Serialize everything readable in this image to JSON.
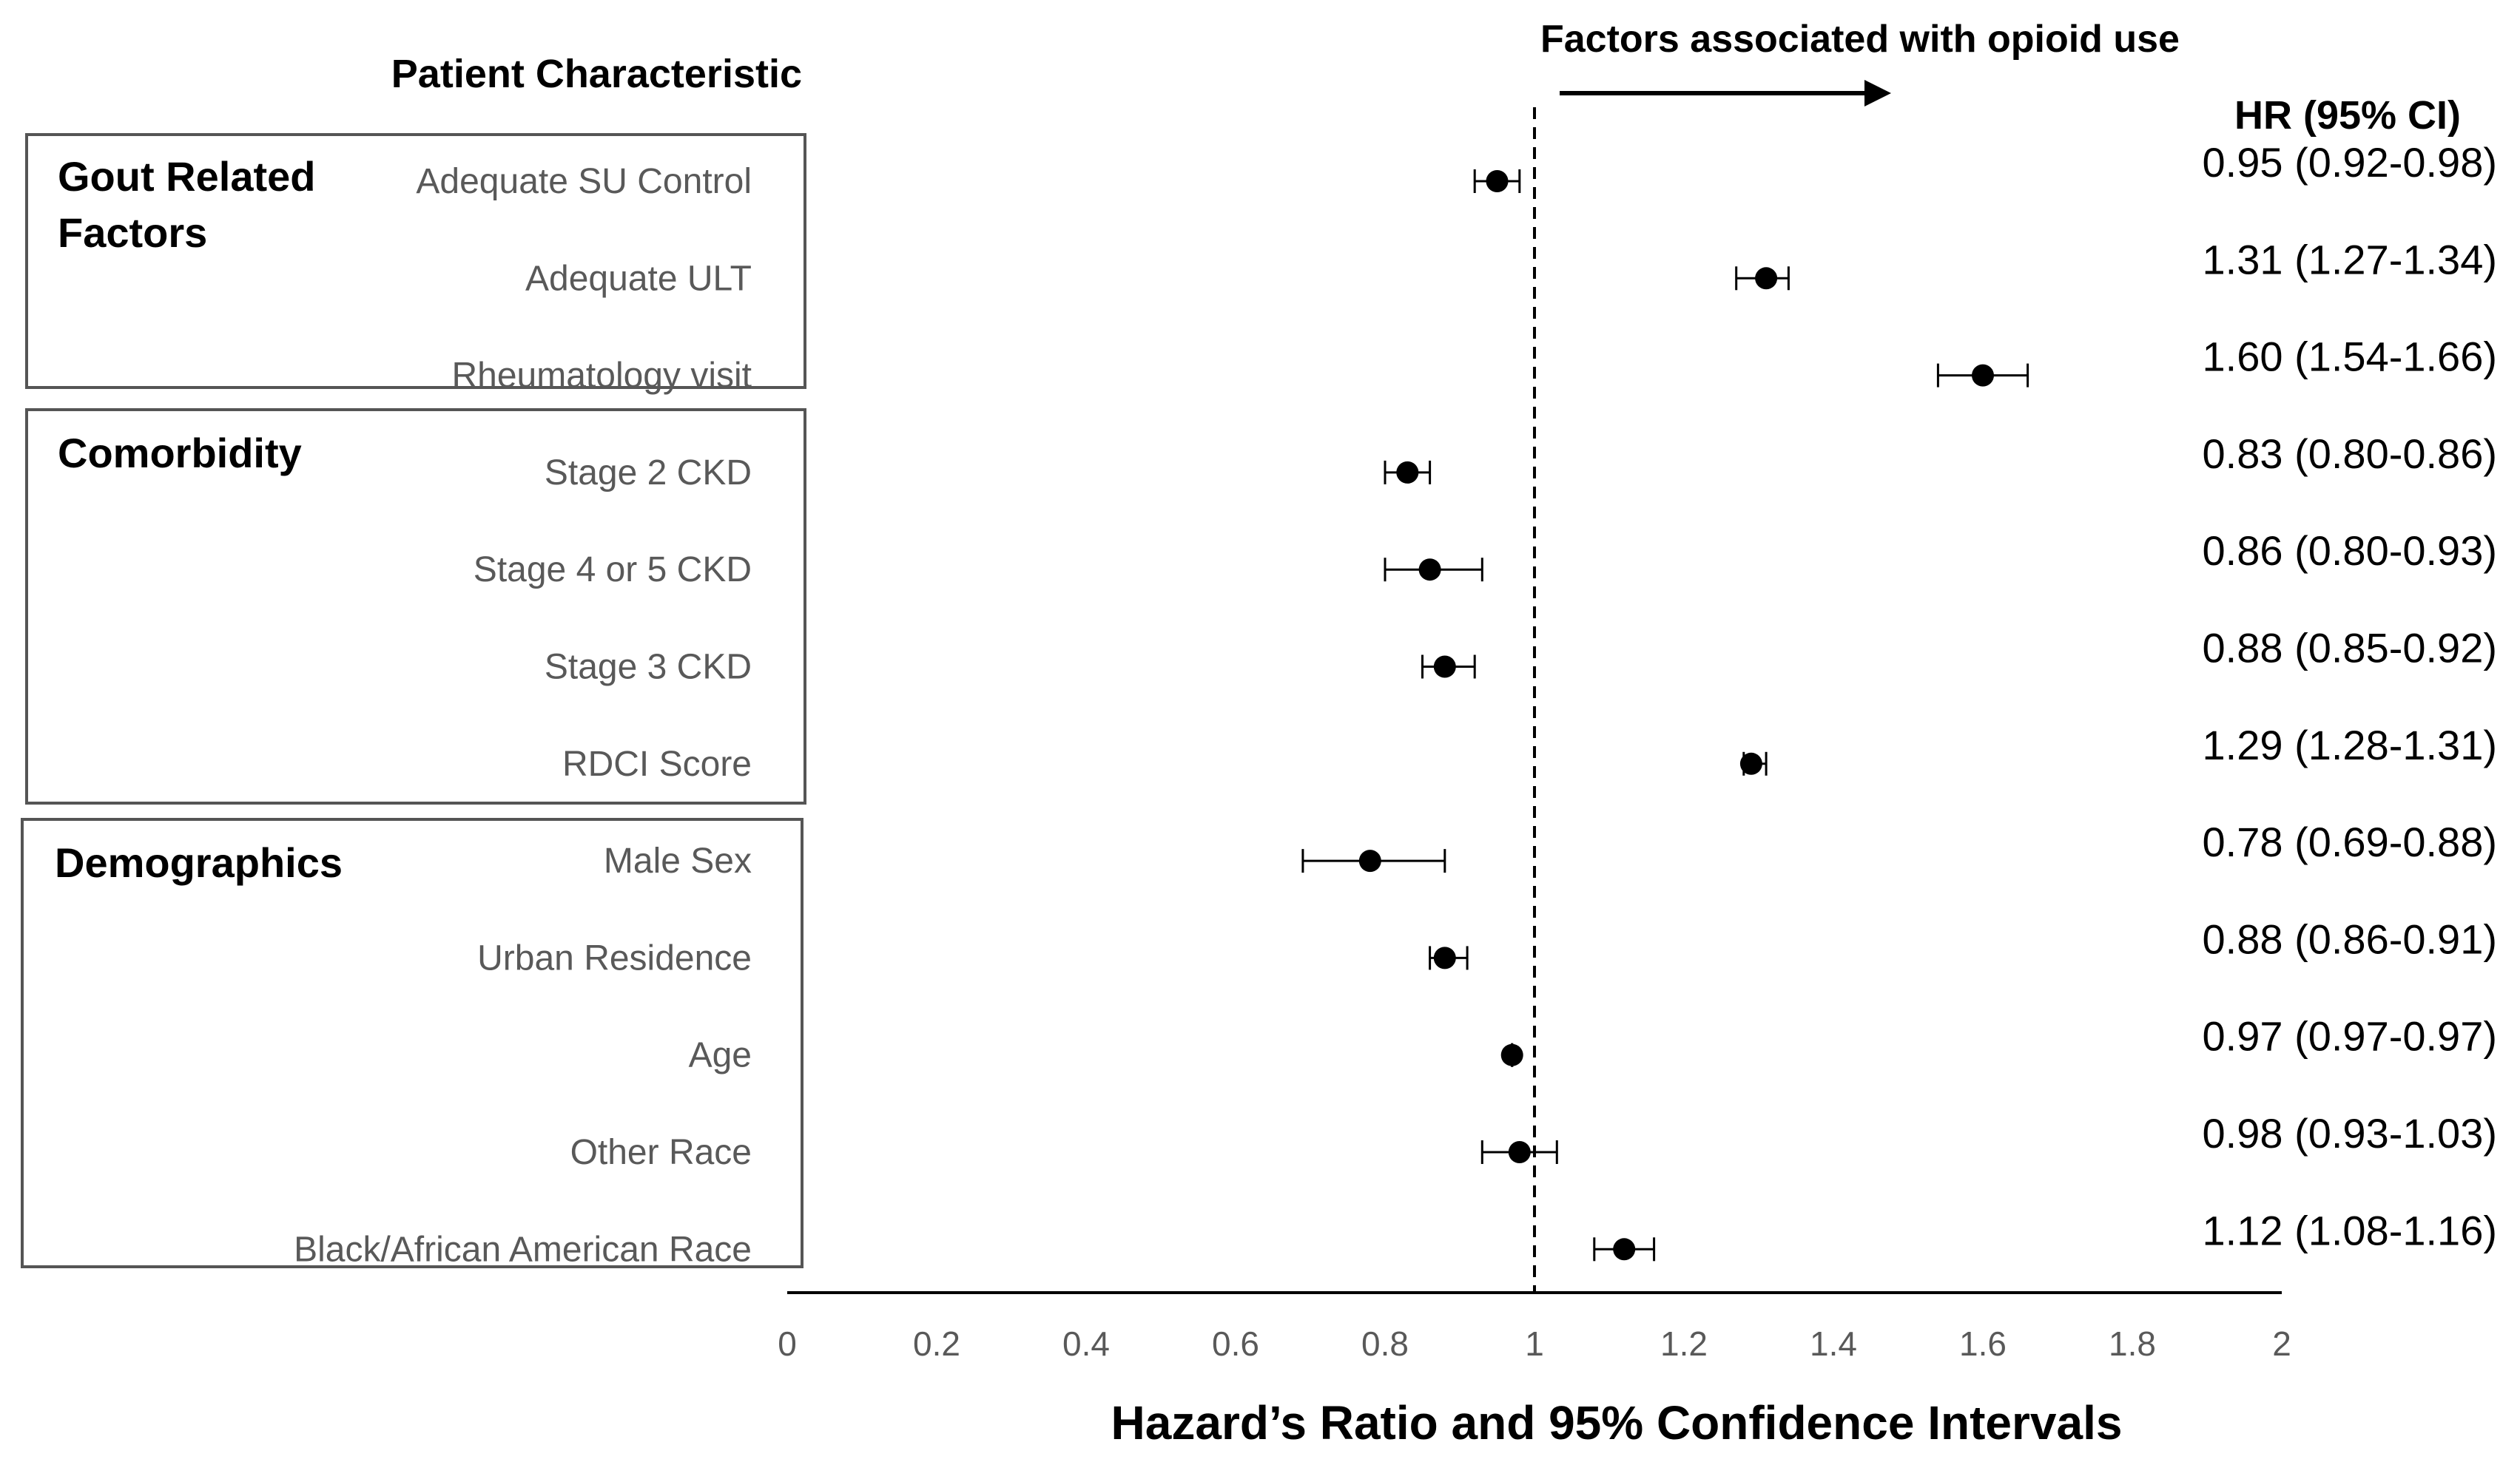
{
  "chart_data": {
    "type": "forest",
    "title": "",
    "xlabel": "Hazard’s Ratio and 95% Confidence Intervals",
    "xlim": [
      0,
      2
    ],
    "x_ticks": [
      "0",
      "0.2",
      "0.4",
      "0.6",
      "0.8",
      "1",
      "1.2",
      "1.4",
      "1.6",
      "1.8",
      "2"
    ],
    "reference_line": 1,
    "annotation": "Factors associated with opioid use",
    "left_header": "Patient Characteristic",
    "right_header": "HR (95% CI)",
    "groups": [
      {
        "name": "Gout Related Factors",
        "items": [
          "Adequate SU Control",
          "Adequate ULT",
          "Rheumatology visit"
        ]
      },
      {
        "name": "Comorbidity",
        "items": [
          "Stage 2 CKD",
          "Stage 4 or 5 CKD",
          "Stage 3 CKD",
          "RDCI Score"
        ]
      },
      {
        "name": "Demographics",
        "items": [
          "Male Sex",
          "Urban Residence",
          "Age",
          "Other Race",
          "Black/African American Race"
        ]
      }
    ],
    "rows": [
      {
        "label": "Adequate SU Control",
        "hr": 0.95,
        "lo": 0.92,
        "hi": 0.98,
        "text": "0.95 (0.92-0.98)"
      },
      {
        "label": "Adequate ULT",
        "hr": 1.31,
        "lo": 1.27,
        "hi": 1.34,
        "text": "1.31 (1.27-1.34)"
      },
      {
        "label": "Rheumatology visit",
        "hr": 1.6,
        "lo": 1.54,
        "hi": 1.66,
        "text": "1.60 (1.54-1.66)"
      },
      {
        "label": "Stage 2 CKD",
        "hr": 0.83,
        "lo": 0.8,
        "hi": 0.86,
        "text": "0.83 (0.80-0.86)"
      },
      {
        "label": "Stage 4 or 5 CKD",
        "hr": 0.86,
        "lo": 0.8,
        "hi": 0.93,
        "text": "0.86 (0.80-0.93)"
      },
      {
        "label": "Stage 3 CKD",
        "hr": 0.88,
        "lo": 0.85,
        "hi": 0.92,
        "text": "0.88 (0.85-0.92)"
      },
      {
        "label": "RDCI Score",
        "hr": 1.29,
        "lo": 1.28,
        "hi": 1.31,
        "text": "1.29 (1.28-1.31)"
      },
      {
        "label": "Male Sex",
        "hr": 0.78,
        "lo": 0.69,
        "hi": 0.88,
        "text": "0.78 (0.69-0.88)"
      },
      {
        "label": "Urban Residence",
        "hr": 0.88,
        "lo": 0.86,
        "hi": 0.91,
        "text": "0.88 (0.86-0.91)"
      },
      {
        "label": "Age",
        "hr": 0.97,
        "lo": 0.97,
        "hi": 0.97,
        "text": "0.97 (0.97-0.97)"
      },
      {
        "label": "Other Race",
        "hr": 0.98,
        "lo": 0.93,
        "hi": 1.03,
        "text": "0.98 (0.93-1.03)"
      },
      {
        "label": "Black/African American Race",
        "hr": 1.12,
        "lo": 1.08,
        "hi": 1.16,
        "text": "1.12 (1.08-1.16)"
      }
    ],
    "grid": false,
    "colors": {
      "marker": "#000000",
      "row_label": "#595959",
      "text": "#000000"
    }
  }
}
